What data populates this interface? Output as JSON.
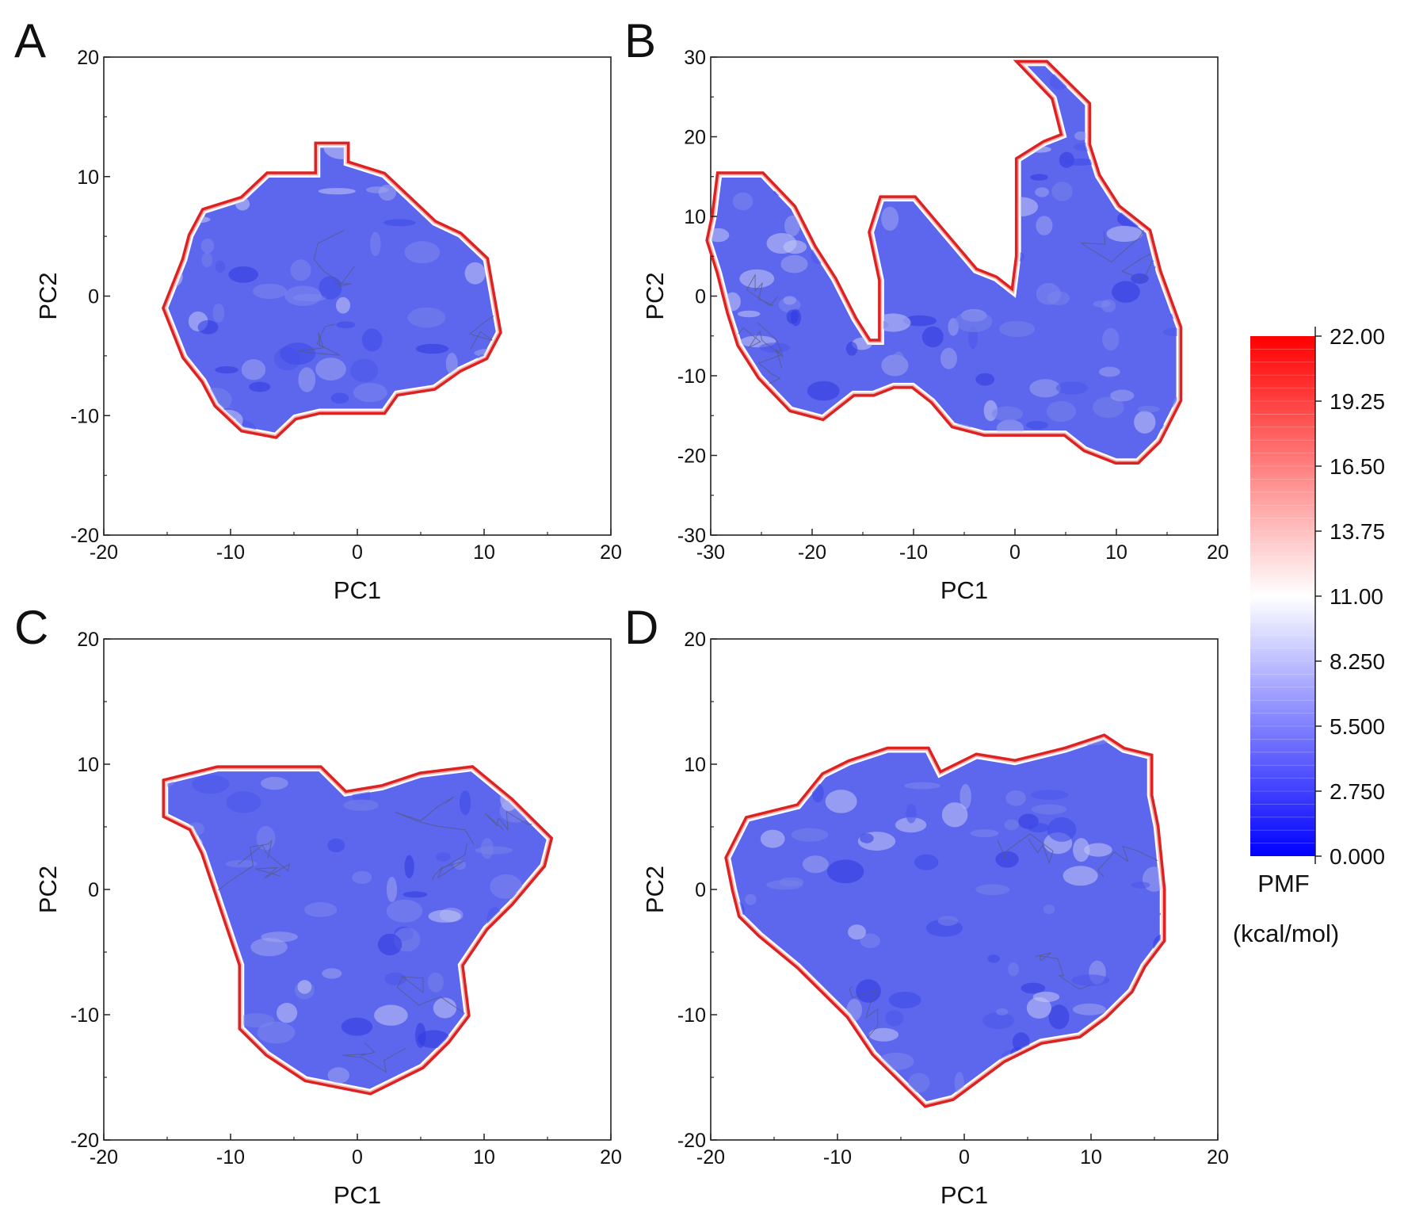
{
  "figure": {
    "colorbar": {
      "ticks": [
        "22.00",
        "19.25",
        "16.50",
        "13.75",
        "11.00",
        "8.250",
        "5.500",
        "2.750",
        "0.000"
      ],
      "title_line1": "PMF",
      "title_line2": "(kcal/mol)",
      "range": [
        0,
        22
      ],
      "colors": {
        "low": "#0000ff",
        "mid": "#ffffff",
        "high": "#ff0000",
        "boundary": "#dd2222"
      }
    }
  },
  "chart_data": [
    {
      "type": "heatmap",
      "panel_label": "A",
      "title": "",
      "xlabel": "PC1",
      "ylabel": "PC2",
      "xlim": [
        -20,
        20
      ],
      "ylim": [
        -20,
        20
      ],
      "x_ticks": [
        "-20",
        "-10",
        "0",
        "10",
        "20"
      ],
      "y_ticks": [
        "-20",
        "-10",
        "0",
        "10",
        "20"
      ],
      "region_outline_pc": [
        [
          -12,
          7
        ],
        [
          -9,
          8
        ],
        [
          -7,
          10
        ],
        [
          -3,
          10
        ],
        [
          -3,
          12.5
        ],
        [
          -1,
          12.5
        ],
        [
          -1,
          11
        ],
        [
          2,
          10
        ],
        [
          4,
          8
        ],
        [
          6,
          6
        ],
        [
          8,
          5
        ],
        [
          10,
          3
        ],
        [
          10.5,
          0
        ],
        [
          11,
          -3
        ],
        [
          10,
          -5
        ],
        [
          8,
          -6
        ],
        [
          6,
          -7.5
        ],
        [
          3,
          -8
        ],
        [
          2,
          -9.5
        ],
        [
          -3,
          -9.5
        ],
        [
          -5,
          -10
        ],
        [
          -6.5,
          -11.5
        ],
        [
          -9,
          -11
        ],
        [
          -11,
          -9
        ],
        [
          -12,
          -7
        ],
        [
          -13.5,
          -5
        ],
        [
          -15,
          -1
        ],
        [
          -13.5,
          3
        ],
        [
          -13,
          5
        ]
      ],
      "pmf_range": [
        0,
        22
      ]
    },
    {
      "type": "heatmap",
      "panel_label": "B",
      "title": "",
      "xlabel": "PC1",
      "ylabel": "PC2",
      "xlim": [
        -30,
        20
      ],
      "ylim": [
        -30,
        30
      ],
      "x_ticks": [
        "-30",
        "-20",
        "-10",
        "0",
        "10",
        "20"
      ],
      "y_ticks": [
        "-30",
        "-20",
        "-10",
        "0",
        "10",
        "20",
        "30"
      ],
      "region_outline_pc": [
        [
          -29,
          15
        ],
        [
          -25,
          15
        ],
        [
          -22,
          11
        ],
        [
          -20,
          6
        ],
        [
          -18,
          2
        ],
        [
          -16,
          -3
        ],
        [
          -14.5,
          -6
        ],
        [
          -13,
          -6
        ],
        [
          -13,
          2
        ],
        [
          -14,
          8
        ],
        [
          -13,
          12
        ],
        [
          -10,
          12
        ],
        [
          -8,
          9
        ],
        [
          -6,
          6
        ],
        [
          -4,
          3
        ],
        [
          -2,
          2
        ],
        [
          0,
          0
        ],
        [
          0.5,
          5
        ],
        [
          0.5,
          17
        ],
        [
          3,
          19
        ],
        [
          5,
          20
        ],
        [
          4,
          25
        ],
        [
          1,
          29
        ],
        [
          3,
          29
        ],
        [
          7,
          24
        ],
        [
          7,
          19
        ],
        [
          8,
          15
        ],
        [
          10,
          11
        ],
        [
          13,
          8
        ],
        [
          14,
          3
        ],
        [
          16,
          -4
        ],
        [
          16,
          -13
        ],
        [
          14,
          -18
        ],
        [
          12,
          -20.5
        ],
        [
          10,
          -20.5
        ],
        [
          7,
          -19
        ],
        [
          5,
          -17
        ],
        [
          1,
          -17
        ],
        [
          -3,
          -17
        ],
        [
          -6,
          -16
        ],
        [
          -8,
          -13
        ],
        [
          -10,
          -11
        ],
        [
          -12,
          -11
        ],
        [
          -14,
          -12
        ],
        [
          -16,
          -12
        ],
        [
          -19,
          -15
        ],
        [
          -22,
          -14
        ],
        [
          -25,
          -10
        ],
        [
          -27,
          -6
        ],
        [
          -28,
          -2
        ],
        [
          -29,
          3
        ],
        [
          -30,
          7
        ],
        [
          -29.5,
          10
        ]
      ],
      "pmf_range": [
        0,
        22
      ]
    },
    {
      "type": "heatmap",
      "panel_label": "C",
      "title": "",
      "xlabel": "PC1",
      "ylabel": "PC2",
      "xlim": [
        -20,
        20
      ],
      "ylim": [
        -20,
        20
      ],
      "x_ticks": [
        "-20",
        "-10",
        "0",
        "10",
        "20"
      ],
      "y_ticks": [
        "-20",
        "-10",
        "0",
        "10",
        "20"
      ],
      "region_outline_pc": [
        [
          -15,
          8.5
        ],
        [
          -11,
          9.5
        ],
        [
          -3,
          9.5
        ],
        [
          -1,
          7.5
        ],
        [
          2,
          8
        ],
        [
          5,
          9
        ],
        [
          9,
          9.5
        ],
        [
          12,
          7
        ],
        [
          15,
          4
        ],
        [
          14.5,
          2
        ],
        [
          12,
          -1
        ],
        [
          10,
          -3
        ],
        [
          8,
          -6
        ],
        [
          8.5,
          -10
        ],
        [
          7,
          -12
        ],
        [
          5,
          -14
        ],
        [
          3,
          -15
        ],
        [
          1,
          -16
        ],
        [
          -4,
          -15
        ],
        [
          -7,
          -13
        ],
        [
          -9,
          -11
        ],
        [
          -9,
          -6
        ],
        [
          -10,
          -3
        ],
        [
          -11,
          0
        ],
        [
          -12,
          3
        ],
        [
          -13,
          5
        ],
        [
          -15,
          6
        ]
      ],
      "pmf_range": [
        0,
        22
      ]
    },
    {
      "type": "heatmap",
      "panel_label": "D",
      "title": "",
      "xlabel": "PC1",
      "ylabel": "PC2",
      "xlim": [
        -20,
        20
      ],
      "ylim": [
        -20,
        20
      ],
      "x_ticks": [
        "-20",
        "-10",
        "0",
        "10",
        "20"
      ],
      "y_ticks": [
        "-20",
        "-10",
        "0",
        "10",
        "20"
      ],
      "region_outline_pc": [
        [
          -18.5,
          2.5
        ],
        [
          -17,
          5.5
        ],
        [
          -13,
          6.5
        ],
        [
          -11,
          9
        ],
        [
          -9,
          10
        ],
        [
          -6,
          11
        ],
        [
          -3,
          11
        ],
        [
          -2,
          9
        ],
        [
          1,
          10.5
        ],
        [
          4,
          10
        ],
        [
          8,
          11
        ],
        [
          11,
          12
        ],
        [
          12.5,
          11
        ],
        [
          14.5,
          10.5
        ],
        [
          14.5,
          7.5
        ],
        [
          15,
          5
        ],
        [
          15.5,
          0
        ],
        [
          15.5,
          -4
        ],
        [
          14,
          -6
        ],
        [
          13,
          -8
        ],
        [
          11,
          -10
        ],
        [
          9,
          -11.5
        ],
        [
          6,
          -12
        ],
        [
          3,
          -13.5
        ],
        [
          1,
          -15
        ],
        [
          -1,
          -16.5
        ],
        [
          -3,
          -17
        ],
        [
          -4,
          -16
        ],
        [
          -7,
          -13
        ],
        [
          -9,
          -10
        ],
        [
          -11,
          -8
        ],
        [
          -13,
          -6
        ],
        [
          -16,
          -3.5
        ],
        [
          -17.5,
          -2
        ],
        [
          -18,
          0
        ]
      ],
      "pmf_range": [
        0,
        22
      ]
    }
  ]
}
